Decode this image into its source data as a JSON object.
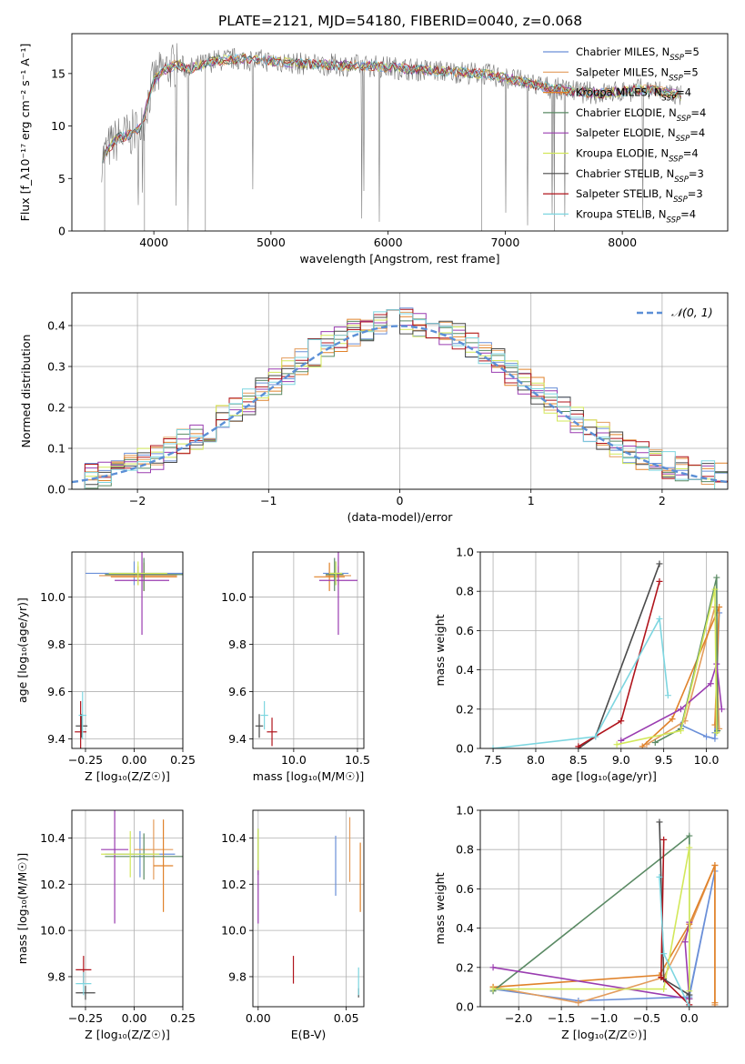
{
  "figure_title": "PLATE=2121, MJD=54180, FIBERID=0040, z=0.068",
  "colors": {
    "chabrier_miles": "#6a8fd8",
    "salpeter_miles": "#e39c5c",
    "kroupa_miles": "#e0822a",
    "chabrier_elodie": "#5a8a64",
    "salpeter_elodie": "#9a3cb0",
    "kroupa_elodie": "#d2e85a",
    "chabrier_stelib": "#4a4a4a",
    "salpeter_stelib": "#b0141c",
    "kroupa_stelib": "#7dd6e0",
    "normal": "#5b8fd6"
  },
  "chart_data": [
    {
      "id": "spectrum",
      "type": "line",
      "xlabel": "wavelength [Angstrom, rest frame]",
      "ylabel": "Flux [f_λ10⁻¹⁷ erg cm⁻² s⁻¹ A⁻¹]",
      "xlim": [
        3300,
        8900
      ],
      "ylim": [
        0,
        18.8
      ],
      "xticks": [
        4000,
        5000,
        6000,
        7000,
        8000
      ],
      "yticks": [
        0,
        5,
        10,
        15
      ],
      "grid": false,
      "legend_position": "top-right",
      "continuum": {
        "x": [
          3550,
          3620,
          3700,
          3800,
          3900,
          3950,
          4000,
          4100,
          4200,
          4300,
          4400,
          4500,
          4700,
          5000,
          5300,
          5600,
          5900,
          6200,
          6500,
          6800,
          7000,
          7200,
          7400,
          7600,
          7800,
          8000,
          8200,
          8400,
          8500
        ],
        "y": [
          6.8,
          8.0,
          8.9,
          9.2,
          10.0,
          12.5,
          14.4,
          15.4,
          15.9,
          15.4,
          15.8,
          16.2,
          16.4,
          16.2,
          15.9,
          15.8,
          15.7,
          15.4,
          15.2,
          15.0,
          14.6,
          14.1,
          13.6,
          13.3,
          13.1,
          13.3,
          13.5,
          13.2,
          12.8
        ]
      },
      "series": [
        {
          "name": "Chabrier MILES, N_SSP=5",
          "color_key": "chabrier_miles"
        },
        {
          "name": "Salpeter MILES, N_SSP=5",
          "color_key": "salpeter_miles"
        },
        {
          "name": "Kroupa MILES, N_SSP=4",
          "color_key": "kroupa_miles"
        },
        {
          "name": "Chabrier ELODIE, N_SSP=4",
          "color_key": "chabrier_elodie"
        },
        {
          "name": "Salpeter ELODIE, N_SSP=4",
          "color_key": "salpeter_elodie"
        },
        {
          "name": "Kroupa ELODIE, N_SSP=4",
          "color_key": "kroupa_elodie"
        },
        {
          "name": "Chabrier STELIB, N_SSP=3",
          "color_key": "chabrier_stelib"
        },
        {
          "name": "Salpeter STELIB, N_SSP=3",
          "color_key": "salpeter_stelib"
        },
        {
          "name": "Kroupa STELIB, N_SSP=4",
          "color_key": "kroupa_stelib"
        }
      ]
    },
    {
      "id": "residuals",
      "type": "line",
      "xlabel": "(data-model)/error",
      "ylabel": "Normed distribution",
      "xlim": [
        -2.5,
        2.5
      ],
      "ylim": [
        0,
        0.48
      ],
      "xticks": [
        -2,
        -1,
        0,
        1,
        2
      ],
      "yticks": [
        0.0,
        0.1,
        0.2,
        0.3,
        0.4
      ],
      "grid": true,
      "legend": "𝒩(0, 1)",
      "legend_position": "top-right",
      "bin_width": 0.1,
      "bins_from": -2.5,
      "bins_to": 2.5
    },
    {
      "id": "z_age",
      "type": "scatter",
      "xlabel": "Z [log₁₀(Z/Z☉)]",
      "ylabel": "age  [log₁₀(age/yr)]",
      "xlim": [
        -0.32,
        0.25
      ],
      "ylim": [
        9.36,
        10.19
      ],
      "xticks": [
        -0.25,
        0.0,
        0.25
      ],
      "yticks": [
        9.4,
        9.6,
        9.8,
        10.0
      ],
      "grid": true,
      "points": [
        {
          "x": 0.0,
          "y": 10.1,
          "xerr": 0.25,
          "yerr": 0.05,
          "color_key": "chabrier_miles"
        },
        {
          "x": 0.02,
          "y": 10.09,
          "xerr": 0.2,
          "yerr": 0.04,
          "color_key": "salpeter_miles"
        },
        {
          "x": 0.05,
          "y": 10.085,
          "xerr": 0.17,
          "yerr": 0.06,
          "color_key": "kroupa_miles"
        },
        {
          "x": 0.05,
          "y": 10.095,
          "xerr": 0.2,
          "yerr": 0.07,
          "color_key": "chabrier_elodie"
        },
        {
          "x": 0.04,
          "y": 10.07,
          "xerr": 0.14,
          "yerr": 0.23,
          "color_key": "salpeter_elodie"
        },
        {
          "x": 0.02,
          "y": 10.1,
          "xerr": 0.15,
          "yerr": 0.05,
          "color_key": "kroupa_elodie"
        },
        {
          "x": -0.27,
          "y": 9.455,
          "xerr": 0.03,
          "yerr": 0.05,
          "color_key": "chabrier_stelib"
        },
        {
          "x": -0.275,
          "y": 9.43,
          "xerr": 0.03,
          "yerr": 0.13,
          "color_key": "salpeter_stelib"
        },
        {
          "x": -0.265,
          "y": 9.5,
          "xerr": 0.02,
          "yerr": 0.1,
          "color_key": "kroupa_stelib"
        }
      ]
    },
    {
      "id": "mass_age",
      "type": "scatter",
      "xlabel": "mass [log₁₀(M/M☉)]",
      "ylabel": "",
      "xlim": [
        9.68,
        10.55
      ],
      "ylim": [
        9.36,
        10.19
      ],
      "xticks": [
        10.0,
        10.5
      ],
      "yticks": [
        9.4,
        9.6,
        9.8,
        10.0
      ],
      "grid": true,
      "points": [
        {
          "x": 10.33,
          "y": 10.1,
          "xerr": 0.1,
          "yerr": 0.05,
          "color_key": "chabrier_miles"
        },
        {
          "x": 10.35,
          "y": 10.09,
          "xerr": 0.1,
          "yerr": 0.04,
          "color_key": "salpeter_miles"
        },
        {
          "x": 10.28,
          "y": 10.085,
          "xerr": 0.12,
          "yerr": 0.06,
          "color_key": "kroupa_miles"
        },
        {
          "x": 10.32,
          "y": 10.095,
          "xerr": 0.07,
          "yerr": 0.07,
          "color_key": "chabrier_elodie"
        },
        {
          "x": 10.35,
          "y": 10.07,
          "xerr": 0.15,
          "yerr": 0.23,
          "color_key": "salpeter_elodie"
        },
        {
          "x": 10.33,
          "y": 10.1,
          "xerr": 0.05,
          "yerr": 0.05,
          "color_key": "kroupa_elodie"
        },
        {
          "x": 9.73,
          "y": 9.455,
          "xerr": 0.03,
          "yerr": 0.05,
          "color_key": "chabrier_stelib"
        },
        {
          "x": 9.83,
          "y": 9.43,
          "xerr": 0.04,
          "yerr": 0.06,
          "color_key": "salpeter_stelib"
        },
        {
          "x": 9.77,
          "y": 9.5,
          "xerr": 0.03,
          "yerr": 0.06,
          "color_key": "kroupa_stelib"
        }
      ]
    },
    {
      "id": "age_weight",
      "type": "line",
      "xlabel": "age  [log₁₀(age/yr)]",
      "ylabel": "mass weight",
      "xlim": [
        7.35,
        10.25
      ],
      "ylim": [
        0,
        1.0
      ],
      "xticks": [
        7.5,
        8.0,
        8.5,
        9.0,
        9.5,
        10.0
      ],
      "yticks": [
        0.0,
        0.2,
        0.4,
        0.6,
        0.8,
        1.0
      ],
      "grid": true,
      "series": [
        {
          "color_key": "chabrier_miles",
          "points": [
            [
              9.7,
              0.12
            ],
            [
              10.0,
              0.06
            ],
            [
              10.1,
              0.05
            ],
            [
              10.15,
              0.69
            ],
            [
              10.1,
              0.08
            ]
          ]
        },
        {
          "color_key": "salpeter_miles",
          "points": [
            [
              9.3,
              0.02
            ],
            [
              9.75,
              0.14
            ],
            [
              10.1,
              0.72
            ],
            [
              10.15,
              0.1
            ]
          ]
        },
        {
          "color_key": "kroupa_miles",
          "points": [
            [
              9.25,
              0.01
            ],
            [
              9.6,
              0.15
            ],
            [
              10.15,
              0.72
            ],
            [
              10.1,
              0.12
            ]
          ]
        },
        {
          "color_key": "chabrier_elodie",
          "points": [
            [
              9.4,
              0.03
            ],
            [
              9.7,
              0.1
            ],
            [
              10.12,
              0.87
            ],
            [
              10.13,
              0.09
            ]
          ]
        },
        {
          "color_key": "salpeter_elodie",
          "points": [
            [
              9.0,
              0.04
            ],
            [
              9.7,
              0.2
            ],
            [
              10.05,
              0.33
            ],
            [
              10.12,
              0.43
            ],
            [
              10.18,
              0.2
            ]
          ]
        },
        {
          "color_key": "kroupa_elodie",
          "points": [
            [
              8.95,
              0.02
            ],
            [
              9.7,
              0.09
            ],
            [
              10.1,
              0.81
            ],
            [
              10.12,
              0.08
            ]
          ]
        },
        {
          "color_key": "chabrier_stelib",
          "points": [
            [
              8.5,
              0.0
            ],
            [
              8.7,
              0.06
            ],
            [
              9.45,
              0.94
            ]
          ]
        },
        {
          "color_key": "salpeter_stelib",
          "points": [
            [
              8.5,
              0.01
            ],
            [
              9.0,
              0.14
            ],
            [
              9.45,
              0.85
            ]
          ]
        },
        {
          "color_key": "kroupa_stelib",
          "points": [
            [
              7.5,
              0.0
            ],
            [
              8.7,
              0.06
            ],
            [
              9.45,
              0.66
            ],
            [
              9.55,
              0.27
            ]
          ]
        }
      ]
    },
    {
      "id": "z_mass",
      "type": "scatter",
      "xlabel": "Z [log₁₀(Z/Z☉)]",
      "ylabel": "mass [log₁₀(M/M☉)]",
      "xlim": [
        -0.32,
        0.25
      ],
      "ylim": [
        9.67,
        10.52
      ],
      "xticks": [
        -0.25,
        0.0,
        0.25
      ],
      "yticks": [
        9.8,
        10.0,
        10.2,
        10.4
      ],
      "grid": true,
      "points": [
        {
          "x": 0.03,
          "y": 10.33,
          "xerr": 0.18,
          "yerr": 0.1,
          "color_key": "chabrier_miles"
        },
        {
          "x": 0.1,
          "y": 10.35,
          "xerr": 0.1,
          "yerr": 0.13,
          "color_key": "salpeter_miles"
        },
        {
          "x": 0.15,
          "y": 10.28,
          "xerr": 0.05,
          "yerr": 0.2,
          "color_key": "kroupa_miles"
        },
        {
          "x": 0.05,
          "y": 10.32,
          "xerr": 0.2,
          "yerr": 0.1,
          "color_key": "chabrier_elodie"
        },
        {
          "x": -0.1,
          "y": 10.35,
          "xerr": 0.07,
          "yerr": 0.32,
          "color_key": "salpeter_elodie"
        },
        {
          "x": -0.02,
          "y": 10.33,
          "xerr": 0.15,
          "yerr": 0.1,
          "color_key": "kroupa_elodie"
        },
        {
          "x": -0.25,
          "y": 9.73,
          "xerr": 0.05,
          "yerr": 0.03,
          "color_key": "chabrier_stelib"
        },
        {
          "x": -0.26,
          "y": 9.83,
          "xerr": 0.04,
          "yerr": 0.06,
          "color_key": "salpeter_stelib"
        },
        {
          "x": -0.26,
          "y": 9.77,
          "xerr": 0.04,
          "yerr": 0.05,
          "color_key": "kroupa_stelib"
        }
      ]
    },
    {
      "id": "ebv_mass",
      "type": "scatter",
      "xlabel": "E(B-V)",
      "ylabel": "",
      "xlim": [
        -0.003,
        0.06
      ],
      "ylim": [
        9.67,
        10.52
      ],
      "xticks": [
        0.0,
        0.05
      ],
      "yticks": [
        9.8,
        10.0,
        10.2,
        10.4
      ],
      "grid": true,
      "points": [
        {
          "x": 0.044,
          "y": 10.28,
          "xerr": 0,
          "yerr": 0.13,
          "color_key": "chabrier_miles"
        },
        {
          "x": 0.052,
          "y": 10.35,
          "xerr": 0,
          "yerr": 0.14,
          "color_key": "salpeter_miles"
        },
        {
          "x": 0.058,
          "y": 10.23,
          "xerr": 0,
          "yerr": 0.15,
          "color_key": "kroupa_miles"
        },
        {
          "x": 0.0,
          "y": 10.34,
          "xerr": 0,
          "yerr": 0.1,
          "color_key": "chabrier_elodie"
        },
        {
          "x": 0.0,
          "y": 10.15,
          "xerr": 0,
          "yerr": 0.12,
          "color_key": "salpeter_elodie"
        },
        {
          "x": 0.0,
          "y": 10.35,
          "xerr": 0,
          "yerr": 0.09,
          "color_key": "kroupa_elodie"
        },
        {
          "x": 0.057,
          "y": 9.73,
          "xerr": 0,
          "yerr": 0.02,
          "color_key": "chabrier_stelib"
        },
        {
          "x": 0.02,
          "y": 9.83,
          "xerr": 0,
          "yerr": 0.06,
          "color_key": "salpeter_stelib"
        },
        {
          "x": 0.057,
          "y": 9.78,
          "xerr": 0,
          "yerr": 0.06,
          "color_key": "kroupa_stelib"
        }
      ]
    },
    {
      "id": "z_weight",
      "type": "line",
      "xlabel": "Z [log₁₀(Z/Z☉)]",
      "ylabel": "mass weight",
      "xlim": [
        -2.45,
        0.45
      ],
      "ylim": [
        0,
        1.0
      ],
      "xticks": [
        -2.0,
        -1.5,
        -1.0,
        -0.5,
        0.0
      ],
      "yticks": [
        0.0,
        0.2,
        0.4,
        0.6,
        0.8,
        1.0
      ],
      "grid": true,
      "series": [
        {
          "color_key": "chabrier_miles",
          "points": [
            [
              -2.3,
              0.09
            ],
            [
              -1.3,
              0.03
            ],
            [
              0.0,
              0.05
            ],
            [
              0.3,
              0.69
            ],
            [
              0.0,
              0.06
            ]
          ]
        },
        {
          "color_key": "salpeter_miles",
          "points": [
            [
              -2.3,
              0.1
            ],
            [
              -1.3,
              0.02
            ],
            [
              -0.3,
              0.15
            ],
            [
              0.0,
              0.4
            ],
            [
              0.3,
              0.72
            ],
            [
              0.3,
              0.01
            ]
          ]
        },
        {
          "color_key": "kroupa_miles",
          "points": [
            [
              -2.3,
              0.1
            ],
            [
              -0.35,
              0.16
            ],
            [
              0.0,
              0.42
            ],
            [
              0.3,
              0.72
            ],
            [
              0.3,
              0.02
            ]
          ]
        },
        {
          "color_key": "chabrier_elodie",
          "points": [
            [
              -2.3,
              0.08
            ],
            [
              0.0,
              0.87
            ],
            [
              0.0,
              0.04
            ]
          ]
        },
        {
          "color_key": "salpeter_elodie",
          "points": [
            [
              -2.3,
              0.2
            ],
            [
              0.0,
              0.04
            ],
            [
              -0.05,
              0.33
            ],
            [
              0.0,
              0.43
            ]
          ]
        },
        {
          "color_key": "kroupa_elodie",
          "points": [
            [
              -2.3,
              0.09
            ],
            [
              -0.3,
              0.09
            ],
            [
              0.0,
              0.81
            ],
            [
              0.0,
              0.08
            ]
          ]
        },
        {
          "color_key": "chabrier_stelib",
          "points": [
            [
              -0.35,
              0.94
            ],
            [
              -0.3,
              0.14
            ],
            [
              0.0,
              0.06
            ],
            [
              0.0,
              0.0
            ]
          ]
        },
        {
          "color_key": "salpeter_stelib",
          "points": [
            [
              -0.3,
              0.85
            ],
            [
              -0.33,
              0.15
            ],
            [
              0.0,
              0.01
            ]
          ]
        },
        {
          "color_key": "kroupa_stelib",
          "points": [
            [
              -0.35,
              0.66
            ],
            [
              -0.3,
              0.27
            ],
            [
              0.0,
              0.0
            ]
          ]
        }
      ]
    }
  ]
}
